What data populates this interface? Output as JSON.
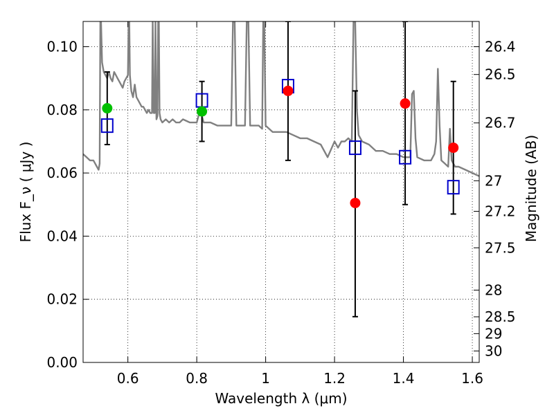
{
  "chart_data": {
    "type": "scatter",
    "xlabel": "Wavelength  λ (μm)",
    "ylabel": "Flux  F_ν ( μJy )",
    "y2label": "Magnitude (AB)",
    "xlim": [
      0.47,
      1.62
    ],
    "ylim": [
      0.0,
      0.108
    ],
    "x_ticks": [
      0.6,
      0.8,
      1.0,
      1.2,
      1.4,
      1.6
    ],
    "x_tick_labels": [
      "0.6",
      "0.8",
      "1",
      "1.2",
      "1.4",
      "1.6"
    ],
    "y_ticks": [
      0.0,
      0.02,
      0.04,
      0.06,
      0.08,
      0.1
    ],
    "y_tick_labels": [
      "0.00",
      "0.02",
      "0.04",
      "0.06",
      "0.08",
      "0.10"
    ],
    "mag_ticks": [
      26.4,
      26.5,
      26.7,
      27,
      27.2,
      27.5,
      28,
      28.5,
      29,
      30
    ],
    "mag_tick_labels": [
      "26.4",
      "26.5",
      "26.7",
      "27",
      "27.2",
      "27.5",
      "28",
      "28.5",
      "29",
      "30"
    ],
    "grid": true,
    "colors": {
      "model": "#808080",
      "green_points": "#00c000",
      "red_points": "#ff0000",
      "squares": "#0000cc",
      "errorbars": "#000000"
    },
    "series": [
      {
        "marker": "line",
        "x": [
          0.47,
          0.48,
          0.49,
          0.5,
          0.505,
          0.51,
          0.515,
          0.518,
          0.52,
          0.522,
          0.525,
          0.53,
          0.535,
          0.54,
          0.545,
          0.55,
          0.555,
          0.56,
          0.565,
          0.57,
          0.575,
          0.58,
          0.585,
          0.59,
          0.595,
          0.6,
          0.602,
          0.604,
          0.606,
          0.61,
          0.615,
          0.62,
          0.625,
          0.63,
          0.635,
          0.64,
          0.645,
          0.65,
          0.655,
          0.66,
          0.665,
          0.67,
          0.672,
          0.675,
          0.678,
          0.68,
          0.683,
          0.686,
          0.688,
          0.69,
          0.692,
          0.695,
          0.7,
          0.71,
          0.72,
          0.73,
          0.74,
          0.75,
          0.76,
          0.78,
          0.8,
          0.81,
          0.815,
          0.82,
          0.84,
          0.86,
          0.88,
          0.9,
          0.905,
          0.91,
          0.915,
          0.92,
          0.93,
          0.94,
          0.945,
          0.95,
          0.955,
          0.96,
          0.97,
          0.98,
          0.99,
          0.993,
          0.996,
          1.0,
          1.02,
          1.04,
          1.06,
          1.08,
          1.1,
          1.12,
          1.14,
          1.16,
          1.18,
          1.2,
          1.21,
          1.22,
          1.23,
          1.24,
          1.25,
          1.255,
          1.26,
          1.265,
          1.27,
          1.28,
          1.3,
          1.32,
          1.34,
          1.36,
          1.38,
          1.4,
          1.42,
          1.425,
          1.43,
          1.435,
          1.44,
          1.46,
          1.48,
          1.49,
          1.495,
          1.5,
          1.505,
          1.51,
          1.52,
          1.53,
          1.535,
          1.54,
          1.55,
          1.56,
          1.58,
          1.6,
          1.62
        ],
        "y": [
          0.066,
          0.065,
          0.064,
          0.064,
          0.063,
          0.062,
          0.061,
          0.063,
          0.108,
          0.108,
          0.095,
          0.092,
          0.091,
          0.09,
          0.092,
          0.09,
          0.089,
          0.092,
          0.091,
          0.09,
          0.089,
          0.088,
          0.087,
          0.089,
          0.09,
          0.091,
          0.108,
          0.108,
          0.091,
          0.086,
          0.084,
          0.088,
          0.084,
          0.083,
          0.082,
          0.081,
          0.081,
          0.08,
          0.079,
          0.08,
          0.079,
          0.079,
          0.108,
          0.079,
          0.079,
          0.108,
          0.077,
          0.078,
          0.108,
          0.108,
          0.079,
          0.077,
          0.076,
          0.077,
          0.076,
          0.077,
          0.076,
          0.076,
          0.077,
          0.076,
          0.076,
          0.08,
          0.078,
          0.076,
          0.076,
          0.075,
          0.075,
          0.075,
          0.108,
          0.108,
          0.075,
          0.075,
          0.075,
          0.075,
          0.108,
          0.108,
          0.075,
          0.075,
          0.075,
          0.075,
          0.074,
          0.108,
          0.108,
          0.075,
          0.073,
          0.073,
          0.073,
          0.072,
          0.071,
          0.071,
          0.07,
          0.069,
          0.065,
          0.07,
          0.068,
          0.07,
          0.07,
          0.071,
          0.07,
          0.108,
          0.108,
          0.08,
          0.072,
          0.07,
          0.069,
          0.067,
          0.067,
          0.066,
          0.066,
          0.065,
          0.065,
          0.085,
          0.086,
          0.071,
          0.065,
          0.064,
          0.064,
          0.066,
          0.07,
          0.093,
          0.075,
          0.064,
          0.063,
          0.062,
          0.074,
          0.064,
          0.062,
          0.062,
          0.061,
          0.06,
          0.059
        ]
      },
      {
        "marker": "circle",
        "color": "green",
        "x": [
          0.54,
          0.815
        ],
        "y": [
          0.0805,
          0.0795
        ]
      },
      {
        "marker": "circle",
        "color": "red",
        "x": [
          1.065,
          1.26,
          1.405,
          1.545
        ],
        "y": [
          0.086,
          0.0505,
          0.082,
          0.068
        ]
      },
      {
        "marker": "square",
        "color": "blue",
        "x": [
          0.54,
          0.815,
          1.065,
          1.26,
          1.405,
          1.545
        ],
        "y": [
          0.075,
          0.083,
          0.0875,
          0.068,
          0.065,
          0.0555
        ]
      },
      {
        "marker": "errorbar",
        "x": [
          0.54,
          0.815,
          1.065,
          1.26,
          1.405,
          1.545
        ],
        "y_low": [
          0.069,
          0.07,
          0.064,
          0.0145,
          0.05,
          0.047
        ],
        "y_high": [
          0.092,
          0.089,
          0.108,
          0.086,
          0.108,
          0.089
        ]
      }
    ]
  }
}
